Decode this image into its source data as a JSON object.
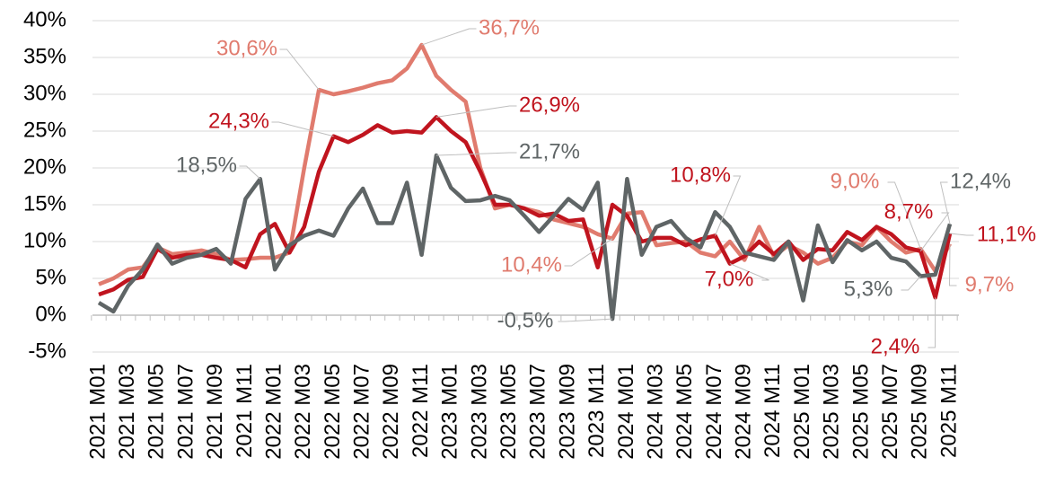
{
  "chart_data": {
    "type": "line",
    "categories": [
      "2021 M01",
      null,
      "2021 M03",
      null,
      "2021 M05",
      null,
      "2021 M07",
      null,
      "2021 M09",
      null,
      "2021 M11",
      null,
      "2022 M01",
      null,
      "2022 M03",
      null,
      "2022 M05",
      null,
      "2022 M07",
      null,
      "2022 M09",
      null,
      "2022 M11",
      null,
      "2023 M01",
      null,
      "2023 M03",
      null,
      "2023 M05",
      null,
      "2023 M07",
      null,
      "2023 M09",
      null,
      "2023 M11",
      null,
      "2024 M01",
      null,
      "2024 M03",
      null,
      "2024 M05",
      null,
      "2024 M07",
      null,
      "2024 M09",
      null,
      "2024 M11",
      null,
      "2025 M01",
      null,
      "2025 M03",
      null,
      "2025 M05",
      null,
      "2025 M07",
      null,
      "2025 M09",
      null,
      "2025 M11"
    ],
    "ylim": [
      -5,
      40
    ],
    "yticks": [
      {
        "value": -5,
        "label": "-5%"
      },
      {
        "value": 0,
        "label": "0%"
      },
      {
        "value": 5,
        "label": "5%"
      },
      {
        "value": 10,
        "label": "10%"
      },
      {
        "value": 15,
        "label": "15%"
      },
      {
        "value": 20,
        "label": "20%"
      },
      {
        "value": 25,
        "label": "25%"
      },
      {
        "value": 30,
        "label": "30%"
      },
      {
        "value": 35,
        "label": "35%"
      },
      {
        "value": 40,
        "label": "40%"
      }
    ],
    "grid": true,
    "series": [
      {
        "color": "#e07b6e",
        "values": [
          4.2,
          5,
          6.2,
          6.5,
          9.2,
          8.3,
          8.5,
          8.8,
          8.3,
          7.5,
          7.6,
          7.8,
          7.8,
          8.5,
          20,
          30.6,
          30,
          30.4,
          30.9,
          31.5,
          31.9,
          33.5,
          36.7,
          32.5,
          30.6,
          29,
          20,
          14.5,
          15,
          14.5,
          14,
          13,
          12.5,
          12,
          11,
          10.4,
          13.8,
          14,
          9.5,
          9.8,
          10,
          8.5,
          8,
          10,
          7.5,
          12,
          8,
          9.5,
          8.5,
          7,
          7.8,
          10,
          9.5,
          12,
          10,
          8.5,
          9,
          6,
          9.7
        ],
        "value_labels": [
          null,
          null,
          null,
          null,
          null,
          null,
          null,
          null,
          null,
          null,
          null,
          null,
          null,
          null,
          null,
          "30,6%",
          null,
          null,
          null,
          null,
          null,
          null,
          "36,7%",
          null,
          null,
          null,
          null,
          null,
          null,
          null,
          null,
          null,
          null,
          null,
          null,
          "10,4%",
          null,
          null,
          null,
          null,
          null,
          null,
          null,
          null,
          null,
          null,
          null,
          null,
          null,
          null,
          null,
          null,
          null,
          null,
          null,
          null,
          "9,0%",
          null,
          "9,7%"
        ]
      },
      {
        "color": "#c0141e",
        "values": [
          2.8,
          3.5,
          4.8,
          5.2,
          9,
          7.8,
          8.2,
          8.2,
          7.8,
          7.5,
          6.5,
          11,
          12.4,
          8.5,
          12,
          19.5,
          24.3,
          23.5,
          24.5,
          25.8,
          24.8,
          25,
          24.8,
          26.9,
          25,
          23.5,
          19.5,
          15,
          15,
          14.5,
          13.5,
          13.8,
          12.8,
          13,
          6.5,
          15,
          13.5,
          10,
          10.5,
          10.5,
          9.5,
          10.3,
          10.8,
          7,
          8,
          10,
          8.3,
          10,
          7.5,
          9,
          8.8,
          11.3,
          10.2,
          12,
          11,
          9.2,
          8.7,
          2.4,
          11.1
        ],
        "value_labels": [
          null,
          null,
          null,
          null,
          null,
          null,
          null,
          null,
          null,
          null,
          null,
          null,
          null,
          null,
          null,
          null,
          "24,3%",
          null,
          null,
          null,
          null,
          null,
          null,
          "26,9%",
          null,
          null,
          null,
          null,
          null,
          null,
          null,
          null,
          null,
          null,
          null,
          null,
          null,
          null,
          null,
          null,
          null,
          null,
          "10,8%",
          "7,0%",
          null,
          null,
          null,
          null,
          null,
          null,
          null,
          null,
          null,
          null,
          null,
          null,
          "8,7%",
          "2,4%",
          "11,1%"
        ]
      },
      {
        "color": "#5f6566",
        "values": [
          1.7,
          0.5,
          4,
          6.2,
          9.6,
          7,
          7.8,
          8.2,
          9,
          7,
          15.8,
          18.5,
          6.2,
          9.5,
          10.8,
          11.5,
          10.8,
          14.5,
          17.2,
          12.5,
          12.5,
          18,
          8.2,
          21.7,
          17.3,
          15.5,
          15.6,
          16.2,
          15.6,
          13.5,
          11.3,
          13.5,
          15.8,
          14.3,
          18,
          -0.5,
          18.5,
          8.2,
          12,
          12.8,
          10.5,
          9.2,
          14,
          12,
          8.5,
          8,
          7.5,
          10,
          2,
          12.2,
          7.2,
          10.2,
          8.8,
          10,
          7.8,
          7.3,
          5.3,
          5.5,
          12.4
        ],
        "value_labels": [
          null,
          null,
          null,
          null,
          null,
          null,
          null,
          null,
          null,
          null,
          null,
          "18,5%",
          null,
          null,
          null,
          null,
          null,
          null,
          null,
          null,
          null,
          null,
          null,
          "21,7%",
          null,
          null,
          null,
          null,
          null,
          null,
          null,
          null,
          null,
          null,
          null,
          "-0,5%",
          null,
          null,
          null,
          null,
          null,
          null,
          null,
          null,
          null,
          null,
          null,
          null,
          null,
          null,
          null,
          null,
          null,
          null,
          null,
          null,
          "5,3%",
          null,
          "12,4%"
        ]
      }
    ]
  }
}
